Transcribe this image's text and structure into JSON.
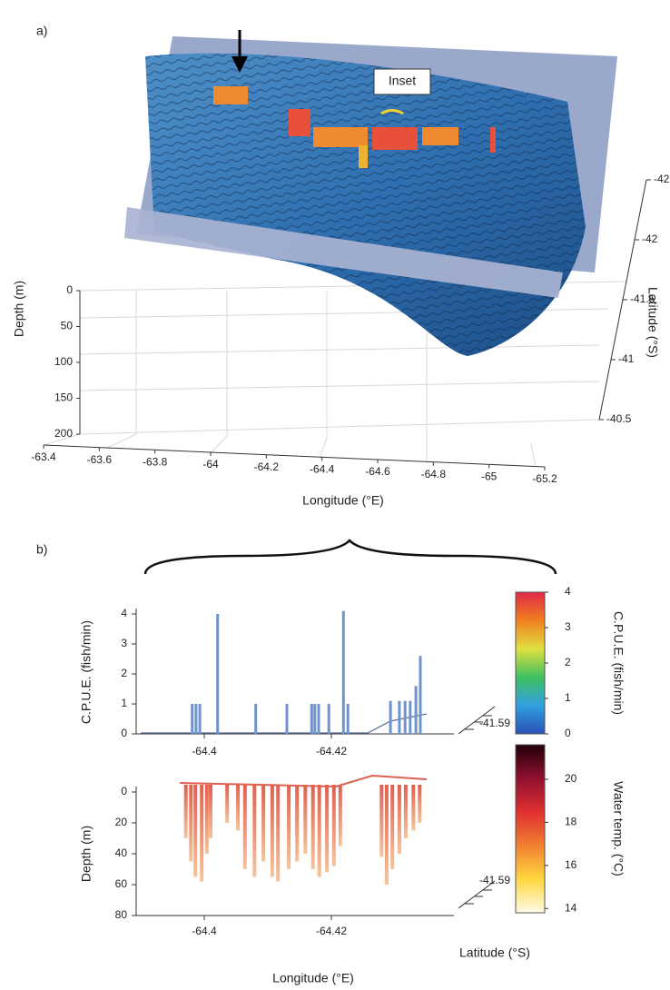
{
  "chart_data": [
    {
      "type": "surface3d",
      "label": "a)",
      "annotation": "Inset",
      "xlabel": "Longitude (°E)",
      "ylabel": "Latitude (°S)",
      "zlabel": "Depth (m)",
      "xlim": [
        -63.4,
        -65.2
      ],
      "xticks": [
        -63.4,
        -63.6,
        -63.8,
        -64,
        -64.2,
        -64.4,
        -64.6,
        -64.8,
        -65,
        -65.2
      ],
      "ylim": [
        -40.5,
        -42.5
      ],
      "yticks": [
        -40.5,
        -41,
        -41.5,
        -42,
        -42.5
      ],
      "zlim": [
        0,
        200
      ],
      "zticks": [
        0,
        50,
        100,
        150,
        200
      ]
    },
    {
      "type": "bar",
      "label": "b)",
      "ylabel": "C.P.U.E. (fish/min)",
      "x": [
        -64.3981,
        -64.3987,
        -64.3993,
        -64.4021,
        -64.4081,
        -64.413,
        -64.4169,
        -64.4174,
        -64.418,
        -64.4196,
        -64.4219,
        -64.4226,
        -64.4293,
        -64.4307,
        -64.4316,
        -64.4324,
        -64.4333,
        -64.434
      ],
      "values": [
        1,
        1,
        1,
        4,
        1,
        1,
        1,
        1,
        1,
        1,
        4.1,
        1,
        1.1,
        1.1,
        1.1,
        1.1,
        1.6,
        2.6
      ],
      "color": "#6f93cc",
      "xlim": [
        -64.39,
        -64.436
      ],
      "xticks": [
        -64.4,
        -64.42
      ],
      "ylim": [
        0,
        4
      ],
      "yticks": [
        0,
        1,
        2,
        3,
        4
      ],
      "latticks": [
        -41.59
      ]
    },
    {
      "type": "depth_profile",
      "ylabel": "Depth (m)",
      "xlabel": "Longitude (°E)",
      "lat_label": "Latitude (°S)",
      "x": [
        -64.3971,
        -64.3979,
        -64.3986,
        -64.3996,
        -64.4004,
        -64.401,
        -64.4036,
        -64.4053,
        -64.4064,
        -64.4079,
        -64.4093,
        -64.4107,
        -64.4116,
        -64.4133,
        -64.4146,
        -64.4159,
        -64.4171,
        -64.4181,
        -64.4193,
        -64.4204,
        -64.4214,
        -64.4279,
        -64.4287,
        -64.4296,
        -64.4307,
        -64.4317,
        -64.4329,
        -64.4339
      ],
      "values": [
        30,
        45,
        55,
        58,
        40,
        30,
        20,
        25,
        50,
        55,
        45,
        55,
        58,
        50,
        45,
        40,
        50,
        55,
        52,
        48,
        35,
        42,
        60,
        50,
        40,
        30,
        25,
        20
      ],
      "color": "#e0604f",
      "xlim": [
        -64.39,
        -64.436
      ],
      "xticks": [
        -64.4,
        -64.42
      ],
      "ylim": [
        0,
        80
      ],
      "yticks": [
        0,
        20,
        40,
        60,
        80
      ],
      "latticks": [
        -41.59
      ]
    },
    {
      "type": "colorbar",
      "label": "C.P.U.E. (fish/min)",
      "lim": [
        0,
        4
      ],
      "ticks": [
        0,
        1,
        2,
        3,
        4
      ],
      "colors": [
        "#2a50b8",
        "#30a0e0",
        "#40c060",
        "#e0e040",
        "#f08020",
        "#e02848"
      ]
    },
    {
      "type": "colorbar",
      "label": "Water temp. (°C)",
      "lim": [
        13.8,
        21.6
      ],
      "ticks": [
        14,
        16,
        18,
        20
      ],
      "colors": [
        "#fffbe8",
        "#ffd840",
        "#f08030",
        "#e03030",
        "#901030",
        "#200008"
      ]
    }
  ]
}
